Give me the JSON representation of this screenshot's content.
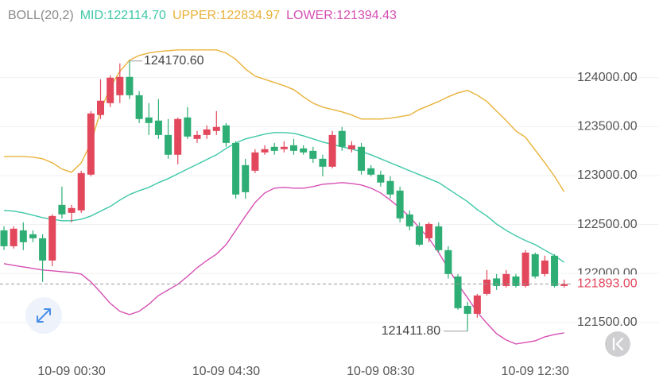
{
  "chart_data": {
    "type": "candlestick",
    "indicator": "BOLL(20,2)",
    "categories": [
      null,
      null,
      null,
      null,
      null,
      null,
      null,
      "10-09 00:30",
      null,
      null,
      null,
      null,
      null,
      null,
      null,
      null,
      null,
      null,
      null,
      null,
      null,
      null,
      null,
      "10-09 04:30",
      null,
      null,
      null,
      null,
      null,
      null,
      null,
      null,
      null,
      null,
      null,
      null,
      null,
      null,
      null,
      "10-09 08:30",
      null,
      null,
      null,
      null,
      null,
      null,
      null,
      null,
      null,
      null,
      null,
      null,
      null,
      null,
      null,
      "10-09 12:30",
      null,
      null,
      null
    ],
    "open": [
      122441,
      122279,
      122441,
      122401,
      122360,
      122133,
      122701,
      122620,
      122645,
      123010,
      123619,
      123740,
      123821,
      124008,
      123821,
      123594,
      123562,
      123415,
      123213,
      123594,
      123375,
      123415,
      123456,
      123513,
      123334,
      123107,
      123050,
      123237,
      123294,
      123270,
      123310,
      123278,
      123253,
      123172,
      123091,
      123456,
      123270,
      123294,
      123075,
      123010,
      122945,
      122847,
      122604,
      122482,
      122360,
      122482,
      122239,
      121970,
      121670,
      121589,
      121792,
      121950,
      121873,
      121970,
      121873,
      122198,
      121995,
      122182,
      121873
    ],
    "high": [
      122482,
      122482,
      122523,
      122441,
      122401,
      122604,
      122888,
      122701,
      123050,
      123659,
      123984,
      124024,
      124146,
      124170.6,
      123862,
      123740,
      123781,
      123578,
      123594,
      123700,
      123456,
      123513,
      123659,
      123537,
      123351,
      123172,
      123270,
      123310,
      123334,
      123351,
      123375,
      123310,
      123294,
      123213,
      123456,
      123497,
      123351,
      123334,
      123107,
      123050,
      122993,
      122888,
      122645,
      122523,
      122523,
      122523,
      122279,
      121995,
      121711,
      121792,
      122036,
      121995,
      122036,
      121995,
      122239,
      122214,
      122182,
      122198,
      121938
    ],
    "low": [
      122239,
      122255,
      122239,
      122320,
      121914,
      122076,
      122563,
      122523,
      122620,
      122993,
      123578,
      123700,
      123740,
      123781,
      123537,
      123415,
      123375,
      123172,
      123115,
      123375,
      123334,
      123375,
      123415,
      123294,
      122766,
      122766,
      123026,
      123213,
      123213,
      123237,
      123213,
      123213,
      123131,
      122993,
      123075,
      123253,
      123237,
      123010,
      122993,
      122888,
      122766,
      122523,
      122441,
      122279,
      122320,
      122214,
      121950,
      121630,
      121411.8,
      121549,
      121776,
      121833,
      121857,
      121857,
      121857,
      121950,
      121970,
      121857,
      121857
    ],
    "close": [
      122279,
      122458,
      122320,
      122360,
      122133,
      122588,
      122604,
      122669,
      123026,
      123635,
      123765,
      124000,
      124008,
      123821,
      123578,
      123537,
      123415,
      123213,
      123578,
      123399,
      123415,
      123472,
      123497,
      123334,
      122807,
      122831,
      123237,
      123270,
      123253,
      123294,
      123253,
      123237,
      123172,
      123091,
      123415,
      123294,
      123310,
      123050,
      123010,
      122929,
      122807,
      122563,
      122482,
      122295,
      122506,
      122239,
      121995,
      121646,
      121589,
      121776,
      121938,
      121873,
      121995,
      121873,
      122214,
      121970,
      122133,
      121873,
      121893
    ],
    "up_color": "#e2475b",
    "down_color": "#2eae74",
    "series": [
      {
        "name": "MID:122114.70",
        "color": "#3ec8a8",
        "values": [
          122645,
          122637,
          122620,
          122596,
          122571,
          122555,
          122539,
          122539,
          122555,
          122588,
          122637,
          122685,
          122750,
          122807,
          122847,
          122880,
          122929,
          122969,
          123018,
          123067,
          123115,
          123164,
          123213,
          123278,
          123334,
          123375,
          123399,
          123424,
          123440,
          123440,
          123432,
          123407,
          123375,
          123343,
          123318,
          123294,
          123270,
          123245,
          123213,
          123172,
          123131,
          123091,
          123050,
          123010,
          122969,
          122929,
          122864,
          122799,
          122734,
          122653,
          122588,
          122506,
          122441,
          122385,
          122336,
          122295,
          122239,
          122182,
          122114.7
        ]
      },
      {
        "name": "UPPER:122834.97",
        "color": "#e9b23a",
        "values": [
          123196,
          123196,
          123196,
          123188,
          123172,
          123131,
          123067,
          123034,
          123131,
          123334,
          123659,
          123903,
          124065,
          124179,
          124227,
          124252,
          124268,
          124276,
          124284,
          124284,
          124284,
          124284,
          124284,
          124252,
          124187,
          124089,
          124016,
          123984,
          123951,
          123919,
          123878,
          123805,
          123740,
          123700,
          123675,
          123651,
          123619,
          123578,
          123578,
          123578,
          123586,
          123602,
          123619,
          123675,
          123716,
          123757,
          123805,
          123846,
          123870,
          123821,
          123757,
          123659,
          123562,
          123456,
          123391,
          123261,
          123131,
          122993,
          122834.97
        ]
      },
      {
        "name": "LOWER:121394.43",
        "color": "#d64fb3",
        "values": [
          122101,
          122084,
          122068,
          122052,
          122036,
          122028,
          122019,
          122011,
          121995,
          121914,
          121808,
          121695,
          121614,
          121581,
          121614,
          121687,
          121776,
          121833,
          121890,
          121970,
          122060,
          122133,
          122198,
          122295,
          122441,
          122588,
          122726,
          122823,
          122872,
          122880,
          122872,
          122872,
          122888,
          122912,
          122920,
          122929,
          122920,
          122904,
          122872,
          122823,
          122750,
          122669,
          122580,
          122466,
          122360,
          122214,
          122052,
          121890,
          121752,
          121606,
          121492,
          121386,
          121321,
          121281,
          121297,
          121313,
          121354,
          121378,
          121394.43
        ]
      }
    ],
    "ylim": [
      121150,
      124550
    ],
    "yticks": [
      {
        "value": 121500,
        "label": "121500.00"
      },
      {
        "value": 122000,
        "label": "122000.00"
      },
      {
        "value": 122500,
        "label": "122500.00"
      },
      {
        "value": 123000,
        "label": "123000.00"
      },
      {
        "value": 123500,
        "label": "123500.00"
      },
      {
        "value": 124000,
        "label": "124000.00"
      }
    ],
    "grid": true,
    "last_price": {
      "value": 121893,
      "label": "121893.00"
    },
    "max_label": {
      "value": 124170.6,
      "label": "124170.60"
    },
    "min_label": {
      "value": 121411.8,
      "label": "121411.80"
    }
  }
}
